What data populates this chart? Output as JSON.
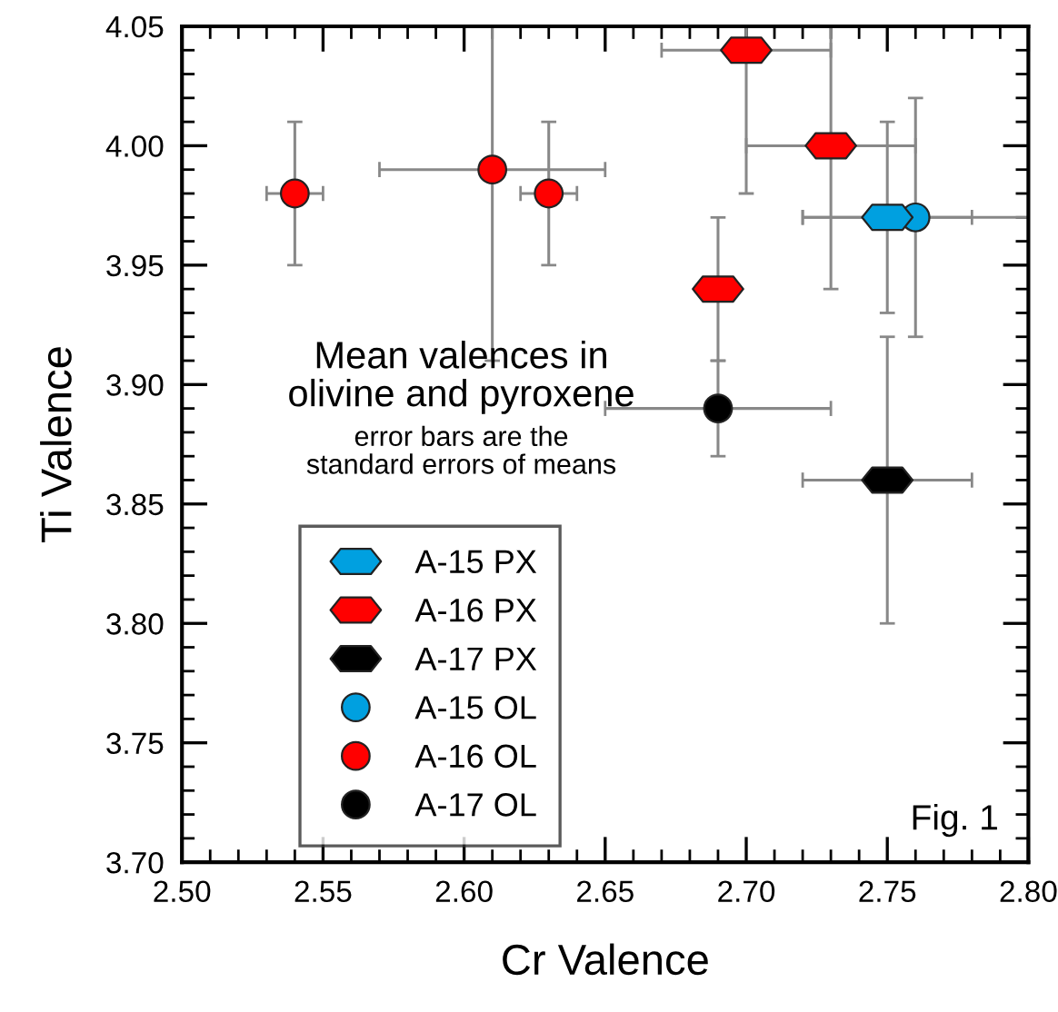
{
  "chart_data": {
    "type": "scatter",
    "xlabel": "Cr Valence",
    "ylabel": "Ti Valence",
    "xlim": [
      2.5,
      2.8
    ],
    "ylim": [
      3.7,
      4.05
    ],
    "xticks": [
      {
        "value": 2.5,
        "label": "2.50"
      },
      {
        "value": 2.51,
        "label": null
      },
      {
        "value": 2.52,
        "label": null
      },
      {
        "value": 2.53,
        "label": null
      },
      {
        "value": 2.54,
        "label": null
      },
      {
        "value": 2.55,
        "label": "2.55"
      },
      {
        "value": 2.56,
        "label": null
      },
      {
        "value": 2.57,
        "label": null
      },
      {
        "value": 2.58,
        "label": null
      },
      {
        "value": 2.59,
        "label": null
      },
      {
        "value": 2.6,
        "label": "2.60"
      },
      {
        "value": 2.61,
        "label": null
      },
      {
        "value": 2.62,
        "label": null
      },
      {
        "value": 2.63,
        "label": null
      },
      {
        "value": 2.64,
        "label": null
      },
      {
        "value": 2.65,
        "label": "2.65"
      },
      {
        "value": 2.66,
        "label": null
      },
      {
        "value": 2.67,
        "label": null
      },
      {
        "value": 2.68,
        "label": null
      },
      {
        "value": 2.69,
        "label": null
      },
      {
        "value": 2.7,
        "label": "2.70"
      },
      {
        "value": 2.71,
        "label": null
      },
      {
        "value": 2.72,
        "label": null
      },
      {
        "value": 2.73,
        "label": null
      },
      {
        "value": 2.74,
        "label": null
      },
      {
        "value": 2.75,
        "label": "2.75"
      },
      {
        "value": 2.76,
        "label": null
      },
      {
        "value": 2.77,
        "label": null
      },
      {
        "value": 2.78,
        "label": null
      },
      {
        "value": 2.79,
        "label": null
      },
      {
        "value": 2.8,
        "label": "2.80"
      }
    ],
    "yticks": [
      {
        "value": 3.7,
        "label": "3.70"
      },
      {
        "value": 3.71,
        "label": null
      },
      {
        "value": 3.72,
        "label": null
      },
      {
        "value": 3.73,
        "label": null
      },
      {
        "value": 3.74,
        "label": null
      },
      {
        "value": 3.75,
        "label": "3.75"
      },
      {
        "value": 3.76,
        "label": null
      },
      {
        "value": 3.77,
        "label": null
      },
      {
        "value": 3.78,
        "label": null
      },
      {
        "value": 3.79,
        "label": null
      },
      {
        "value": 3.8,
        "label": "3.80"
      },
      {
        "value": 3.81,
        "label": null
      },
      {
        "value": 3.82,
        "label": null
      },
      {
        "value": 3.83,
        "label": null
      },
      {
        "value": 3.84,
        "label": null
      },
      {
        "value": 3.85,
        "label": "3.85"
      },
      {
        "value": 3.86,
        "label": null
      },
      {
        "value": 3.87,
        "label": null
      },
      {
        "value": 3.88,
        "label": null
      },
      {
        "value": 3.89,
        "label": null
      },
      {
        "value": 3.9,
        "label": "3.90"
      },
      {
        "value": 3.91,
        "label": null
      },
      {
        "value": 3.92,
        "label": null
      },
      {
        "value": 3.93,
        "label": null
      },
      {
        "value": 3.94,
        "label": null
      },
      {
        "value": 3.95,
        "label": "3.95"
      },
      {
        "value": 3.96,
        "label": null
      },
      {
        "value": 3.97,
        "label": null
      },
      {
        "value": 3.98,
        "label": null
      },
      {
        "value": 3.99,
        "label": null
      },
      {
        "value": 4.0,
        "label": "4.00"
      },
      {
        "value": 4.01,
        "label": null
      },
      {
        "value": 4.02,
        "label": null
      },
      {
        "value": 4.03,
        "label": null
      },
      {
        "value": 4.04,
        "label": null
      },
      {
        "value": 4.05,
        "label": "4.05"
      }
    ],
    "grid": false,
    "legend": "bottom left",
    "annotations": [
      "Mean valences in\nolivine and pyroxene",
      "error bars are the\nstandard errors of means",
      "Fig. 1"
    ],
    "series": [
      {
        "name": "A-15 PX",
        "color": "#00a0e0",
        "x": [
          2.75
        ],
        "values": [
          3.97
        ],
        "errors": [
          0.04
        ],
        "xerrors": [
          0.03
        ]
      },
      {
        "name": "A-16 PX",
        "color": "#ff0000",
        "x": [
          2.7,
          2.73,
          2.69
        ],
        "values": [
          4.04,
          4.0,
          3.94
        ],
        "errors": [
          [
            3.98,
            4.05
          ],
          [
            3.94,
            4.05
          ],
          0.03
        ],
        "xerrors": [
          0.03,
          0.03,
          null
        ]
      },
      {
        "name": "A-17 PX",
        "color": "#000000",
        "x": [
          2.75
        ],
        "values": [
          3.86
        ],
        "errors": [
          0.06
        ],
        "xerrors": [
          0.03
        ]
      },
      {
        "name": "A-15 OL",
        "color": "#00a0e0",
        "x": [
          2.76
        ],
        "values": [
          3.97
        ],
        "errors": [
          0.05
        ],
        "xerrors": [
          0.04
        ]
      },
      {
        "name": "A-16 OL",
        "color": "#ff0000",
        "x": [
          2.54,
          2.61,
          2.63
        ],
        "values": [
          3.98,
          3.99,
          3.98
        ],
        "errors": [
          0.03,
          [
            3.91,
            4.05
          ],
          0.03
        ],
        "xerrors": [
          0.01,
          0.04,
          0.01
        ]
      },
      {
        "name": "A-17 OL",
        "color": "#000000",
        "x": [
          2.69
        ],
        "values": [
          3.89
        ],
        "errors": [
          0.02
        ],
        "xerrors": [
          0.04
        ]
      }
    ]
  }
}
